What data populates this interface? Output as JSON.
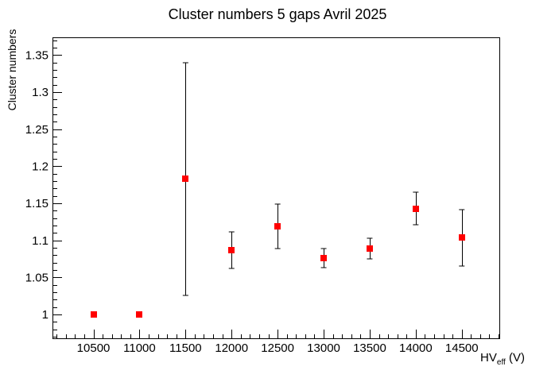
{
  "title": "Cluster numbers 5 gaps Avril 2025",
  "chart_data": {
    "type": "scatter",
    "title": "Cluster numbers 5 gaps Avril 2025",
    "xlabel": "HV_eff (V)",
    "xlabel_prefix": "HV",
    "xlabel_sub": "eff",
    "xlabel_suffix": " (V)",
    "ylabel": "Cluster numbers",
    "xlim": [
      10055,
      14908
    ],
    "ylim": [
      0.968,
      1.374
    ],
    "grid": false,
    "legend": "none",
    "marker": "filled-square",
    "marker_color": "#ff0000",
    "axis_color": "#000000",
    "background_color": "#ffffff",
    "x_major_ticks": {
      "values": [
        10500,
        11000,
        11500,
        12000,
        12500,
        13000,
        13500,
        14000,
        14500
      ],
      "labels": [
        "10500",
        "11000",
        "11500",
        "12000",
        "12500",
        "13000",
        "13500",
        "14000",
        "14500"
      ]
    },
    "x_minor_step": 100,
    "y_major_ticks": {
      "values": [
        1.0,
        1.05,
        1.1,
        1.15,
        1.2,
        1.25,
        1.3,
        1.35
      ],
      "labels": [
        "1",
        "1.05",
        "1.1",
        "1.15",
        "1.2",
        "1.25",
        "1.3",
        "1.35"
      ]
    },
    "y_minor_step": 0.01,
    "points": [
      {
        "x": 10500,
        "y": 1.0,
        "ey": 0.0
      },
      {
        "x": 11000,
        "y": 1.0,
        "ey": 0.0
      },
      {
        "x": 11500,
        "y": 1.183,
        "ey": 0.157
      },
      {
        "x": 12000,
        "y": 1.087,
        "ey": 0.025
      },
      {
        "x": 12500,
        "y": 1.119,
        "ey": 0.03
      },
      {
        "x": 13000,
        "y": 1.076,
        "ey": 0.013
      },
      {
        "x": 13500,
        "y": 1.089,
        "ey": 0.014
      },
      {
        "x": 14000,
        "y": 1.143,
        "ey": 0.022
      },
      {
        "x": 14500,
        "y": 1.104,
        "ey": 0.038
      }
    ]
  }
}
